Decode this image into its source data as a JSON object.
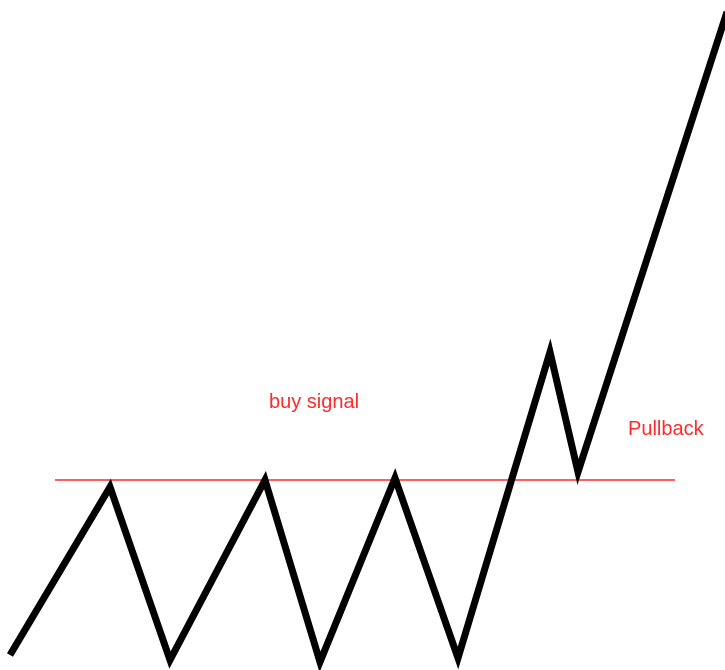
{
  "annotations": {
    "buy_signal": "buy signal",
    "pullback": "Pullback"
  }
}
